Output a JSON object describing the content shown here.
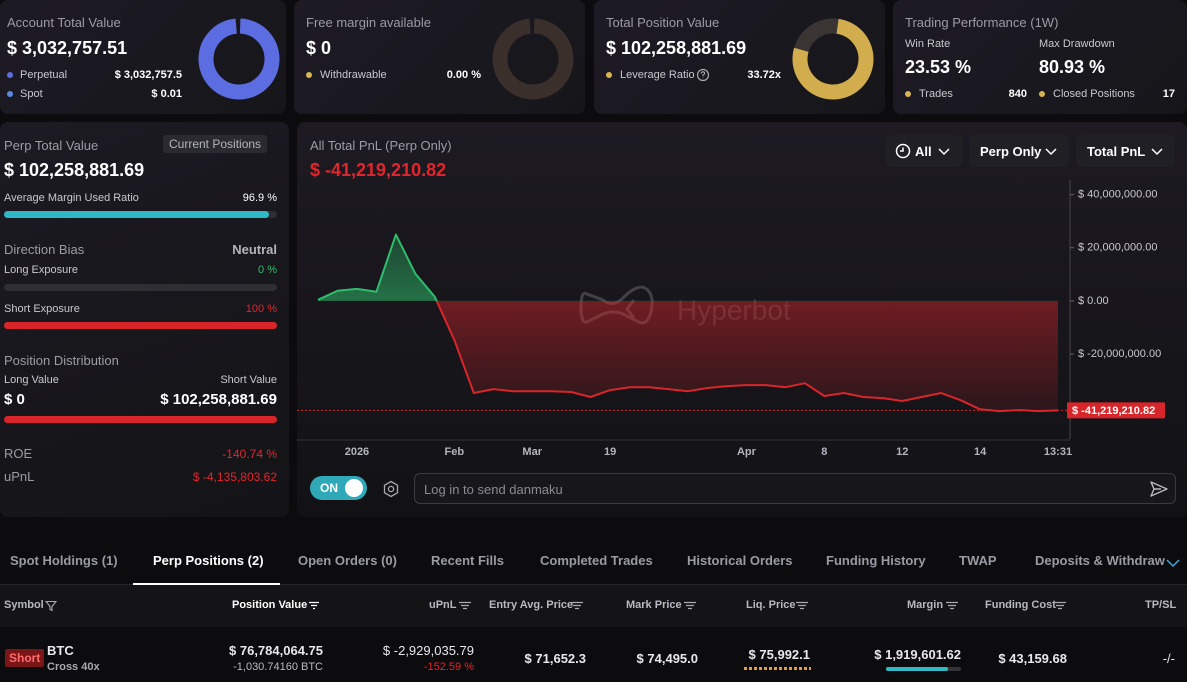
{
  "cards": [
    {
      "title": "Account Total Value",
      "value": "$ 3,032,757.51",
      "rows": [
        {
          "label": "Perpetual",
          "value": "$ 3,032,757.5"
        },
        {
          "label": "Spot",
          "value": "$ 0.01"
        }
      ]
    },
    {
      "title": "Free margin available",
      "value": "$ 0",
      "rows": [
        {
          "label": "Withdrawable",
          "value": "0.00 %"
        }
      ]
    },
    {
      "title": "Total Position Value",
      "value": "$ 102,258,881.69",
      "rows": [
        {
          "label": "Leverage Ratio",
          "value": "33.72x"
        }
      ]
    }
  ],
  "performance": {
    "title": "Trading Performance (1W)",
    "stats": [
      {
        "label": "Win Rate",
        "value": "23.53 %"
      },
      {
        "label": "Max Drawdown",
        "value": "80.93 %"
      }
    ],
    "counts": [
      {
        "label": "Trades",
        "value": "840"
      },
      {
        "label": "Closed Positions",
        "value": "17"
      }
    ]
  },
  "sidebar": {
    "title": "Perp Total Value",
    "button": "Current Positions",
    "value": "$ 102,258,881.69",
    "margin_ratio": {
      "label": "Average Margin Used Ratio",
      "value": "96.9 %"
    },
    "bias": {
      "title": "Direction Bias",
      "value": "Neutral",
      "long": {
        "label": "Long Exposure",
        "value": "0 %"
      },
      "short": {
        "label": "Short Exposure",
        "value": "100 %"
      }
    },
    "distribution": {
      "title": "Position Distribution",
      "long_label": "Long Value",
      "short_label": "Short Value",
      "long_value": "$ 0",
      "short_value": "$ 102,258,881.69"
    },
    "roe": {
      "label": "ROE",
      "value": "-140.74 %"
    },
    "upnl": {
      "label": "uPnL",
      "value": "$ -4,135,803.62"
    }
  },
  "chart_data": {
    "type": "area",
    "title": "All Total PnL (Perp Only)",
    "subtitle": "$ -41,219,210.82",
    "watermark": "Hyperbot",
    "filters": [
      "All",
      "Perp Only",
      "Total PnL"
    ],
    "categories": [
      null,
      null,
      "2026",
      null,
      null,
      null,
      null,
      "Feb",
      null,
      null,
      null,
      "Mar",
      null,
      null,
      null,
      "19",
      null,
      null,
      null,
      null,
      null,
      null,
      "Apr",
      null,
      null,
      null,
      "8",
      null,
      null,
      null,
      "12",
      null,
      null,
      null,
      "14",
      null,
      null,
      null,
      "13:31"
    ],
    "values": [
      400000,
      3800000,
      4500000,
      3400000,
      24900000,
      10200000,
      1500000,
      -14700000,
      -34700000,
      -33200000,
      -34000000,
      -34000000,
      -34000000,
      -34300000,
      -36200000,
      -33600000,
      -32500000,
      -32500000,
      -33200000,
      -34000000,
      -32800000,
      -32100000,
      -31700000,
      -31700000,
      -32500000,
      -31000000,
      -35800000,
      -34700000,
      -36200000,
      -36600000,
      -37700000,
      -36200000,
      -34700000,
      -37400000,
      -40800000,
      -41500000,
      -41100000,
      -41500000,
      -41219210.82
    ],
    "ylim": [
      -52000000,
      44000000
    ],
    "yticks": [
      {
        "value": 40000000,
        "label": "$ 40,000,000.00"
      },
      {
        "value": 20000000,
        "label": "$ 20,000,000.00"
      },
      {
        "value": 0,
        "label": "$ 0.00"
      },
      {
        "value": -20000000,
        "label": "$ -20,000,000.00"
      }
    ],
    "positive_color": "#2ebd6b",
    "negative_color": "#d8252a",
    "grid": false
  },
  "danmaku": {
    "toggle": "ON",
    "placeholder": "Log in to send danmaku"
  },
  "tabs": [
    "Spot Holdings (1)",
    "Perp Positions (2)",
    "Open Orders (0)",
    "Recent Fills",
    "Completed Trades",
    "Historical Orders",
    "Funding History",
    "TWAP",
    "Deposits & Withdraw"
  ],
  "table": {
    "headers": [
      "Symbol",
      "Position Value",
      "uPnL",
      "Entry Avg. Price",
      "Mark Price",
      "Liq. Price",
      "Margin",
      "Funding Cost",
      "TP/SL"
    ],
    "rows": [
      {
        "side": "Short",
        "symbol": "BTC",
        "margin_mode": "Cross 40x",
        "position_value": "$ 76,784,064.75",
        "size": "-1,030.74160 BTC",
        "upnl": "$ -2,929,035.79",
        "upnl_pct": "-152.59 %",
        "entry": "$ 71,652.3",
        "mark": "$ 74,495.0",
        "liq": "$ 75,992.1",
        "margin": "$ 1,919,601.62",
        "funding": "$ 43,159.68",
        "tpsl": "-/-"
      }
    ]
  }
}
